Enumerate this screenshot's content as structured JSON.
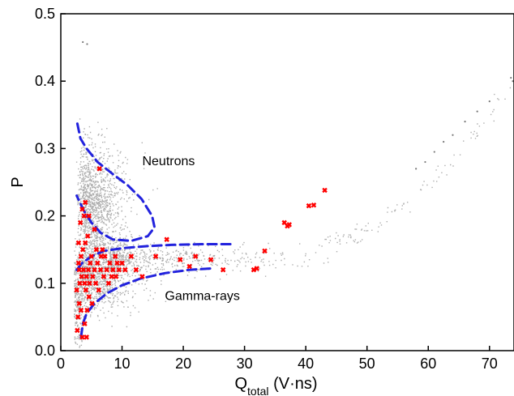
{
  "chart_data": {
    "type": "scatter",
    "xlabel_main": "Q",
    "xlabel_sub": "total",
    "xlabel_unit": " (V·ns)",
    "ylabel": "P",
    "xlim": [
      0,
      74
    ],
    "ylim": [
      0,
      0.5
    ],
    "xticks": [
      0,
      10,
      20,
      30,
      40,
      50,
      60,
      70
    ],
    "yticks": [
      0.0,
      0.1,
      0.2,
      0.3,
      0.4,
      0.5
    ],
    "xtick_labels": [
      "0",
      "10",
      "20",
      "30",
      "40",
      "50",
      "60",
      "70"
    ],
    "ytick_labels": [
      "0.0",
      "0.1",
      "0.2",
      "0.3",
      "0.4",
      "0.5"
    ],
    "grid": false,
    "annotations": [
      {
        "text": "Neutrons",
        "x": 13.3,
        "y": 0.275
      },
      {
        "text": "Gamma-rays",
        "x": 17,
        "y": 0.075
      }
    ],
    "colors": {
      "background_points": "#000000",
      "highlight_points": "#ff0000",
      "boundary_curves": "#2222dd"
    },
    "highlight_points": [
      [
        3.5,
        0.02
      ],
      [
        4.2,
        0.02
      ],
      [
        2.8,
        0.05
      ],
      [
        3.0,
        0.07
      ],
      [
        2.6,
        0.09
      ],
      [
        3.1,
        0.1
      ],
      [
        3.4,
        0.11
      ],
      [
        3.7,
        0.12
      ],
      [
        2.9,
        0.13
      ],
      [
        3.3,
        0.14
      ],
      [
        3.9,
        0.1
      ],
      [
        4.2,
        0.11
      ],
      [
        4.5,
        0.12
      ],
      [
        4.8,
        0.13
      ],
      [
        5.2,
        0.11
      ],
      [
        5.5,
        0.12
      ],
      [
        6.0,
        0.13
      ],
      [
        6.5,
        0.12
      ],
      [
        7.0,
        0.11
      ],
      [
        7.5,
        0.12
      ],
      [
        8.0,
        0.13
      ],
      [
        8.5,
        0.12
      ],
      [
        9.0,
        0.11
      ],
      [
        9.5,
        0.12
      ],
      [
        10.0,
        0.13
      ],
      [
        4.1,
        0.09
      ],
      [
        4.6,
        0.08
      ],
      [
        5.1,
        0.07
      ],
      [
        3.6,
        0.15
      ],
      [
        4.0,
        0.16
      ],
      [
        4.4,
        0.17
      ],
      [
        3.2,
        0.19
      ],
      [
        3.5,
        0.21
      ],
      [
        4.0,
        0.22
      ],
      [
        3.8,
        0.2
      ],
      [
        4.6,
        0.2
      ],
      [
        5.5,
        0.18
      ],
      [
        6.3,
        0.27
      ],
      [
        5.0,
        0.14
      ],
      [
        6.8,
        0.15
      ],
      [
        7.2,
        0.14
      ],
      [
        8.3,
        0.11
      ],
      [
        9.2,
        0.13
      ],
      [
        2.7,
        0.03
      ],
      [
        3.9,
        0.04
      ],
      [
        5.7,
        0.1
      ],
      [
        6.2,
        0.09
      ],
      [
        7.8,
        0.1
      ],
      [
        11.5,
        0.14
      ],
      [
        13.3,
        0.11
      ],
      [
        15.5,
        0.14
      ],
      [
        17.3,
        0.165
      ],
      [
        19.5,
        0.135
      ],
      [
        21.0,
        0.125
      ],
      [
        22.0,
        0.14
      ],
      [
        24.5,
        0.135
      ],
      [
        26.5,
        0.12
      ],
      [
        31.5,
        0.12
      ],
      [
        32.0,
        0.122
      ],
      [
        33.3,
        0.148
      ],
      [
        36.5,
        0.19
      ],
      [
        37.0,
        0.185
      ],
      [
        37.3,
        0.187
      ],
      [
        40.5,
        0.215
      ],
      [
        41.3,
        0.216
      ],
      [
        43.1,
        0.238
      ],
      [
        3.3,
        0.06
      ],
      [
        4.3,
        0.06
      ],
      [
        2.9,
        0.16
      ],
      [
        5.8,
        0.15
      ],
      [
        6.6,
        0.14
      ],
      [
        8.9,
        0.14
      ],
      [
        10.5,
        0.12
      ],
      [
        12.3,
        0.12
      ],
      [
        4.7,
        0.1
      ],
      [
        3.0,
        0.12
      ]
    ],
    "background_point_count": 7000
  }
}
